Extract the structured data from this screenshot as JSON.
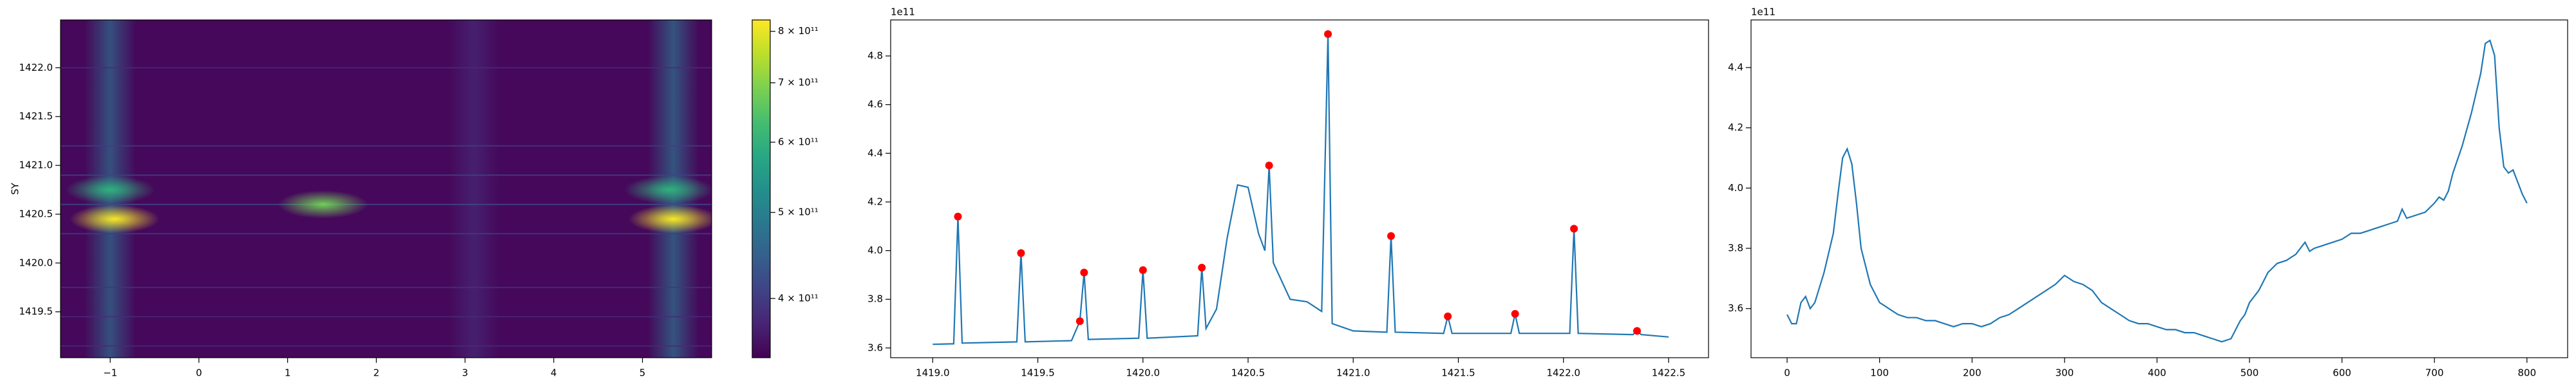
{
  "chart_data": [
    {
      "type": "heatmap",
      "ylabel": "SY",
      "xlim": [
        -1.56,
        5.78
      ],
      "ylim": [
        1419.03,
        1422.49
      ],
      "xticks": [
        {
          "value": -1,
          "label": "−1"
        },
        0,
        1,
        2,
        3,
        4,
        5
      ],
      "yticks": [
        {
          "value": 1419.5,
          "label": "1419.5"
        },
        {
          "value": 1420.0,
          "label": "1420.0"
        },
        {
          "value": 1420.5,
          "label": "1420.5"
        },
        {
          "value": 1421.0,
          "label": "1421.0"
        },
        {
          "value": 1421.5,
          "label": "1421.5"
        },
        {
          "value": 1422.0,
          "label": "1422.0"
        }
      ],
      "clim": [
        343000000000,
        824000000000
      ],
      "color_scale": "log",
      "colormap": "viridis",
      "cticks": [
        {
          "value": 400000000000,
          "label": "4 × 10¹¹"
        },
        {
          "value": 500000000000,
          "label": "5 × 10¹¹"
        },
        {
          "value": 600000000000,
          "label": "6 × 10¹¹"
        },
        {
          "value": 700000000000,
          "label": "7 × 10¹¹"
        },
        {
          "value": 800000000000,
          "label": "8 × 10¹¹"
        }
      ],
      "bands": {
        "x": [
          -1.0,
          3.1,
          5.35
        ],
        "values": [
          470000000000,
          380000000000,
          480000000000
        ]
      },
      "rows": {
        "y": [
          1419.15,
          1419.45,
          1419.75,
          1420.3,
          1420.6,
          1420.9,
          1421.2,
          1422.0
        ],
        "values": [
          380000000000,
          380000000000,
          390000000000,
          400000000000,
          420000000000,
          410000000000,
          400000000000,
          380000000000
        ]
      },
      "hotspots": {
        "x": [
          -0.95,
          -1.0,
          1.4,
          5.35,
          5.3
        ],
        "y": [
          1420.45,
          1420.75,
          1420.6,
          1420.45,
          1420.75
        ],
        "values": [
          820000000000,
          600000000000,
          680000000000,
          820000000000,
          600000000000
        ]
      }
    },
    {
      "type": "line",
      "offset_label": "1e11",
      "xlim": [
        1418.8,
        1422.69
      ],
      "ylim": [
        3.56,
        4.948
      ],
      "xticks": [
        {
          "value": 1419.0,
          "label": "1419.0"
        },
        1419.5,
        {
          "value": 1420.0,
          "label": "1420.0"
        },
        1420.5,
        {
          "value": 1421.0,
          "label": "1421.0"
        },
        1421.5,
        {
          "value": 1422.0,
          "label": "1422.0"
        },
        1422.5
      ],
      "yticks": [
        3.6,
        3.8,
        {
          "value": 4.0,
          "label": "4.0"
        },
        4.2,
        4.4,
        4.6,
        4.8
      ],
      "series": [
        {
          "color": "#1f77b4",
          "marker": "none",
          "x": [
            1419.0,
            1419.1,
            1419.12,
            1419.14,
            1419.4,
            1419.42,
            1419.44,
            1419.66,
            1419.7,
            1419.72,
            1419.74,
            1419.98,
            1420.0,
            1420.02,
            1420.26,
            1420.28,
            1420.3,
            1420.35,
            1420.4,
            1420.45,
            1420.5,
            1420.55,
            1420.58,
            1420.6,
            1420.62,
            1420.7,
            1420.78,
            1420.85,
            1420.88,
            1420.9,
            1421.0,
            1421.16,
            1421.18,
            1421.2,
            1421.43,
            1421.45,
            1421.47,
            1421.75,
            1421.77,
            1421.79,
            1422.03,
            1422.05,
            1422.07,
            1422.33,
            1422.35,
            1422.37,
            1422.5
          ],
          "values": [
            3.615,
            3.617,
            4.14,
            3.62,
            3.625,
            3.99,
            3.625,
            3.63,
            3.71,
            3.91,
            3.635,
            3.64,
            3.92,
            3.64,
            3.65,
            3.93,
            3.68,
            3.76,
            4.05,
            4.27,
            4.26,
            4.07,
            4.0,
            4.35,
            3.95,
            3.8,
            3.79,
            3.75,
            4.89,
            3.7,
            3.67,
            3.665,
            4.06,
            3.665,
            3.66,
            3.73,
            3.66,
            3.66,
            3.74,
            3.66,
            3.66,
            4.09,
            3.66,
            3.655,
            3.67,
            3.655,
            3.645
          ]
        },
        {
          "color": "#ff0000",
          "marker": "circle",
          "line": false,
          "x": [
            1419.12,
            1419.42,
            1419.7,
            1419.72,
            1420.0,
            1420.28,
            1420.6,
            1420.88,
            1421.18,
            1421.45,
            1421.77,
            1422.05,
            1422.35
          ],
          "values": [
            4.14,
            3.99,
            3.71,
            3.91,
            3.92,
            3.93,
            4.35,
            4.89,
            4.06,
            3.73,
            3.74,
            4.09,
            3.67
          ]
        }
      ]
    },
    {
      "type": "line",
      "offset_label": "1e11",
      "xlim": [
        -39,
        844
      ],
      "ylim": [
        3.437,
        4.558
      ],
      "xticks": [
        0,
        100,
        200,
        300,
        400,
        500,
        600,
        700,
        800
      ],
      "yticks": [
        3.6,
        3.8,
        {
          "value": 4.0,
          "label": "4.0"
        },
        4.2,
        4.4
      ],
      "series": [
        {
          "color": "#1f77b4",
          "marker": "none",
          "x": [
            0,
            5,
            10,
            15,
            20,
            25,
            30,
            40,
            50,
            55,
            60,
            65,
            70,
            75,
            80,
            90,
            100,
            110,
            120,
            130,
            140,
            150,
            160,
            170,
            180,
            190,
            200,
            210,
            220,
            230,
            240,
            250,
            260,
            270,
            280,
            290,
            300,
            310,
            320,
            330,
            340,
            350,
            360,
            370,
            380,
            390,
            400,
            410,
            420,
            430,
            440,
            450,
            460,
            470,
            480,
            490,
            495,
            500,
            510,
            520,
            530,
            540,
            550,
            560,
            565,
            570,
            580,
            590,
            600,
            610,
            620,
            630,
            640,
            650,
            660,
            665,
            670,
            680,
            690,
            700,
            705,
            710,
            715,
            720,
            730,
            740,
            750,
            755,
            760,
            765,
            770,
            775,
            780,
            785,
            790,
            795,
            800
          ],
          "values": [
            3.58,
            3.55,
            3.55,
            3.62,
            3.64,
            3.6,
            3.62,
            3.72,
            3.85,
            3.98,
            4.1,
            4.13,
            4.08,
            3.95,
            3.8,
            3.68,
            3.62,
            3.6,
            3.58,
            3.57,
            3.57,
            3.56,
            3.56,
            3.55,
            3.54,
            3.55,
            3.55,
            3.54,
            3.55,
            3.57,
            3.58,
            3.6,
            3.62,
            3.64,
            3.66,
            3.68,
            3.71,
            3.69,
            3.68,
            3.66,
            3.62,
            3.6,
            3.58,
            3.56,
            3.55,
            3.55,
            3.54,
            3.53,
            3.53,
            3.52,
            3.52,
            3.51,
            3.5,
            3.49,
            3.5,
            3.56,
            3.58,
            3.62,
            3.66,
            3.72,
            3.75,
            3.76,
            3.78,
            3.82,
            3.79,
            3.8,
            3.81,
            3.82,
            3.83,
            3.85,
            3.85,
            3.86,
            3.87,
            3.88,
            3.89,
            3.93,
            3.9,
            3.91,
            3.92,
            3.95,
            3.97,
            3.96,
            3.99,
            4.05,
            4.14,
            4.25,
            4.38,
            4.48,
            4.49,
            4.44,
            4.2,
            4.07,
            4.05,
            4.06,
            4.02,
            3.98,
            3.95
          ]
        }
      ]
    }
  ]
}
